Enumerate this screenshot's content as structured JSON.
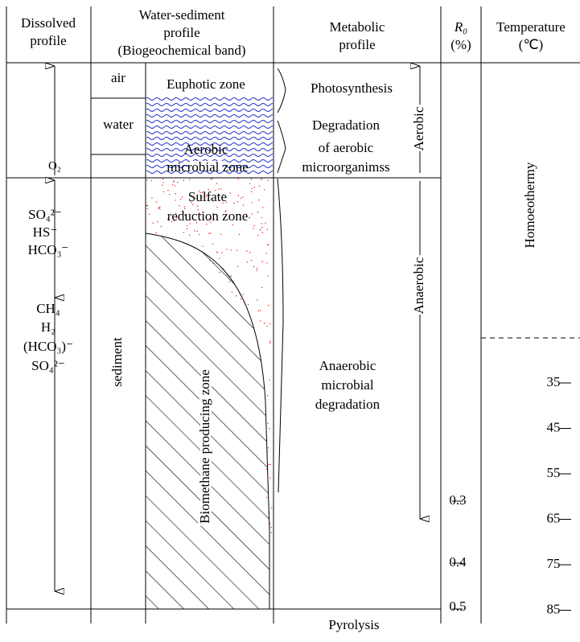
{
  "header": {
    "dissolved": [
      "Dissolved",
      "profile"
    ],
    "water_sediment": [
      "Water-sediment",
      "profile",
      "(Biogeochemical band)"
    ],
    "metabolic": [
      "Metabolic",
      "profile"
    ],
    "r0": [
      "R₀",
      "(%)"
    ],
    "temperature": [
      "Temperature",
      "(℃)"
    ]
  },
  "dissolved_species": [
    "O₂",
    "SO₄²⁻",
    "HS⁻",
    "HCO₃⁻",
    "CH₄",
    "H₂",
    "(HCO₃)⁻",
    "SO₄²⁻"
  ],
  "layers": {
    "air": "air",
    "water": "water",
    "sediment": "sediment"
  },
  "zones": {
    "euphotic": "Euphotic zone",
    "aerobic": [
      "Aerobic",
      "microbial zone"
    ],
    "sulfate": [
      "Sulfate",
      "reduction zone"
    ],
    "biomethane": "Biomethane producing zone"
  },
  "metabolic": {
    "photosynthesis": "Photosynthesis",
    "aerobic_degradation": [
      "Degradation",
      "of aerobic",
      "microorganimss"
    ],
    "aerobic": "Aerobic",
    "anaerobic": "Anaerobic",
    "anaerobic_degradation": [
      "Anaerobic",
      "microbial",
      "degradation"
    ],
    "pyrolysis": "Pyrolysis"
  },
  "r0_ticks": [
    "0.3",
    "0.4",
    "0.5"
  ],
  "temperature": {
    "label": "Homoeothermy",
    "ticks": [
      "35",
      "45",
      "55",
      "65",
      "75",
      "85"
    ]
  }
}
